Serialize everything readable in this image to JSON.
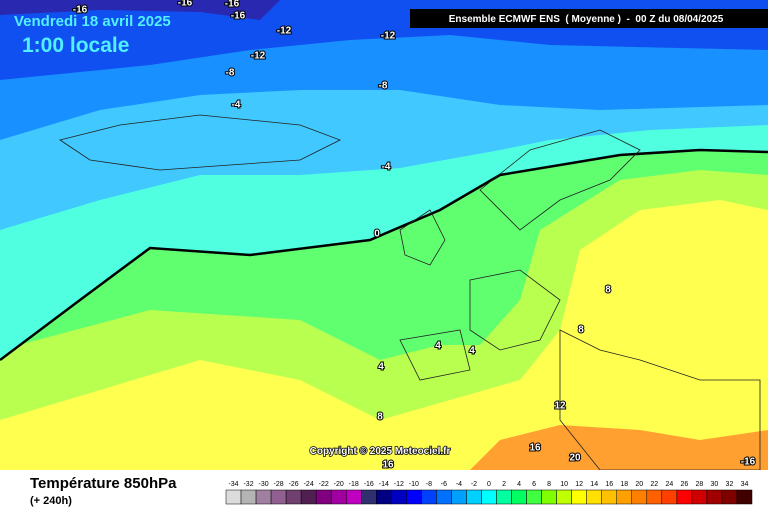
{
  "header": {
    "date": "Vendredi 18 avril 2025",
    "time": "1:00 locale",
    "model": "Ensemble ECMWF ENS  ( Moyenne )  -  00 Z du 08/04/2025"
  },
  "map": {
    "copyright": "Copyright © 2025 Meteociel.fr",
    "contour_labels": [
      -16,
      -16,
      -16,
      -16,
      -12,
      -12,
      -12,
      -8,
      -8,
      -4,
      -4,
      0,
      4,
      4,
      4,
      8,
      8,
      8,
      12,
      16,
      16,
      20,
      -16
    ]
  },
  "footer": {
    "title": "Température 850hPa",
    "subtitle": "(+ 240h)"
  },
  "legend": {
    "labels": [
      -34,
      -32,
      -30,
      -28,
      -26,
      -24,
      -22,
      -20,
      -18,
      -16,
      -14,
      -12,
      -10,
      -8,
      -6,
      -4,
      -2,
      0,
      2,
      4,
      6,
      8,
      10,
      12,
      14,
      16,
      18,
      20,
      22,
      24,
      26,
      28,
      30,
      32,
      34
    ],
    "colors": [
      "#dcdcdc",
      "#b4b4b4",
      "#a080a0",
      "#906090",
      "#704070",
      "#502050",
      "#800080",
      "#a000a0",
      "#c000c0",
      "#303070",
      "#000080",
      "#0000c0",
      "#0000ff",
      "#0040ff",
      "#0070ff",
      "#00a0ff",
      "#00d0ff",
      "#00ffff",
      "#00ffa0",
      "#00ff60",
      "#40ff40",
      "#80ff00",
      "#c0ff00",
      "#ffff00",
      "#ffe000",
      "#ffc000",
      "#ffa000",
      "#ff8000",
      "#ff6000",
      "#ff4000",
      "#ff0000",
      "#d00000",
      "#a00000",
      "#800000",
      "#400000"
    ]
  }
}
